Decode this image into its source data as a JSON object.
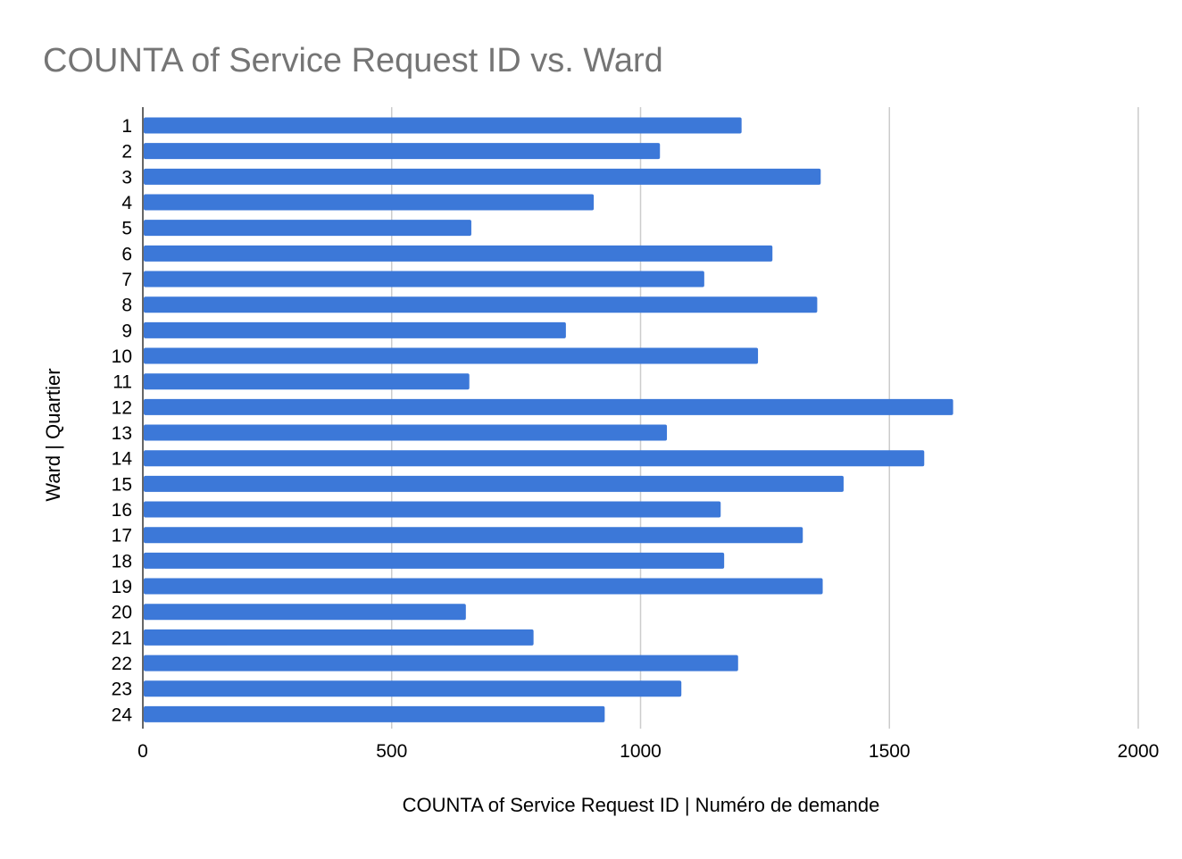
{
  "chart_data": {
    "type": "bar",
    "orientation": "horizontal",
    "title": "COUNTA of Service Request ID vs. Ward",
    "xlabel": "COUNTA of Service Request ID | Numéro de demande",
    "ylabel": "Ward | Quartier",
    "categories": [
      "1",
      "2",
      "3",
      "4",
      "5",
      "6",
      "7",
      "8",
      "9",
      "10",
      "11",
      "12",
      "13",
      "14",
      "15",
      "16",
      "17",
      "18",
      "19",
      "20",
      "21",
      "22",
      "23",
      "24"
    ],
    "series": [
      {
        "values": [
          1203,
          1039,
          1362,
          906,
          660,
          1265,
          1128,
          1355,
          850,
          1236,
          656,
          1628,
          1053,
          1570,
          1408,
          1161,
          1326,
          1168,
          1366,
          649,
          785,
          1196,
          1082,
          928
        ]
      }
    ],
    "xlim": [
      0,
      2000
    ],
    "xticks": [
      "0",
      "500",
      "1000",
      "1500",
      "2000"
    ],
    "grid": true,
    "legend": "none",
    "bar_color": "#3c78d8",
    "grid_color": "#cccccc",
    "title_color": "#757575"
  }
}
